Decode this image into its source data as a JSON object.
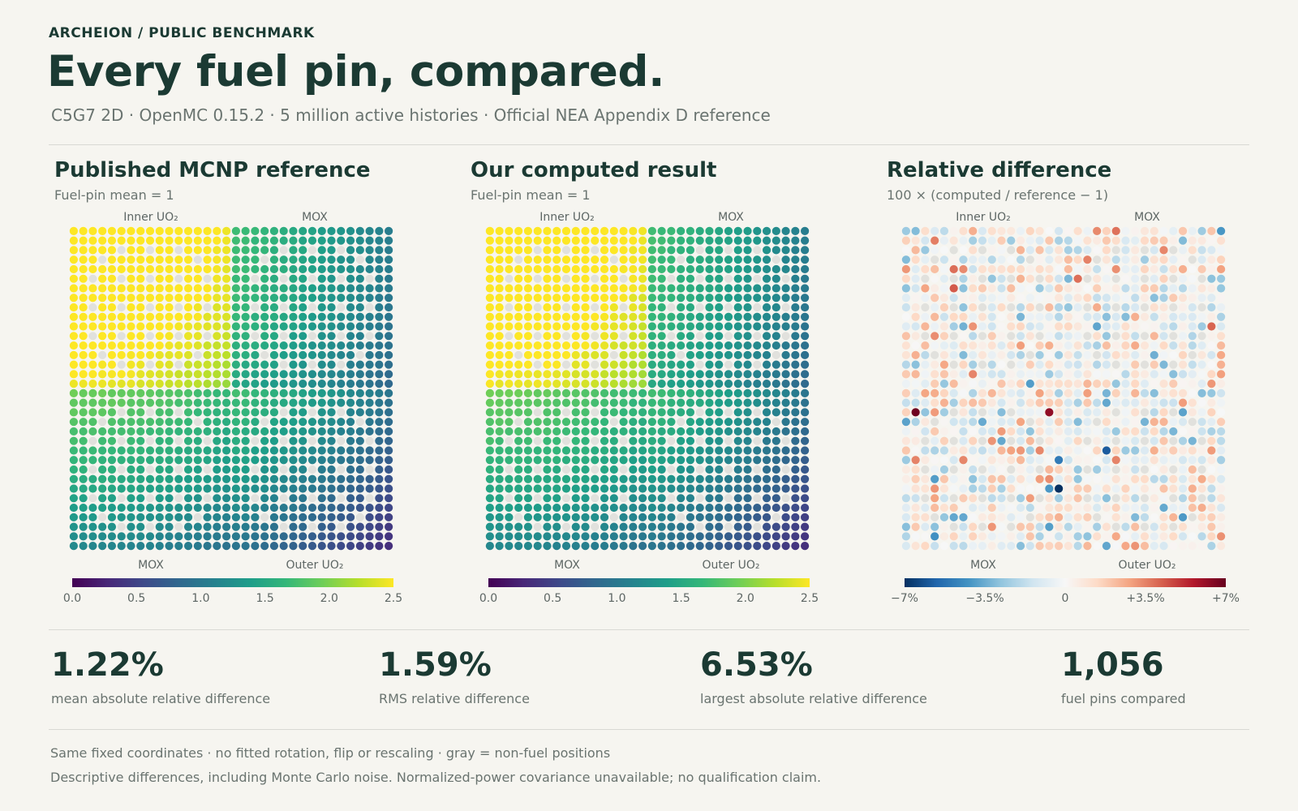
{
  "header": {
    "brand": "ARCHEION  /  PUBLIC BENCHMARK",
    "title": "Every fuel pin, compared.",
    "subtitle": "C5G7 2D · OpenMC 0.15.2 · 5 million active histories · Official NEA Appendix D reference"
  },
  "colors": {
    "background": "#f6f5f0",
    "text_dark": "#1b3a33",
    "text_muted": "#6a7470",
    "nonfuel_gray": "#e1e1dd",
    "viridis": [
      "#440154",
      "#482878",
      "#3e4a89",
      "#31688e",
      "#26828e",
      "#1f9e89",
      "#35b779",
      "#6ece58",
      "#b5de2b",
      "#fde725"
    ],
    "diverging": [
      "#053061",
      "#2166ac",
      "#4393c3",
      "#92c5de",
      "#d1e5f0",
      "#f7f7f7",
      "#fddbc7",
      "#f4a582",
      "#d6604d",
      "#b2182b",
      "#67001f"
    ]
  },
  "panels": [
    {
      "title": "Published MCNP reference",
      "subtitle": "Fuel-pin mean = 1",
      "top_labels": [
        "Inner UO₂",
        "MOX"
      ],
      "bottom_labels": [
        "MOX",
        "Outer UO₂"
      ],
      "colorbar_ticks": [
        "0.0",
        "0.5",
        "1.0",
        "1.5",
        "2.0",
        "2.5"
      ],
      "colormap": "viridis"
    },
    {
      "title": "Our computed result",
      "subtitle": "Fuel-pin mean = 1",
      "top_labels": [
        "Inner UO₂",
        "MOX"
      ],
      "bottom_labels": [
        "MOX",
        "Outer UO₂"
      ],
      "colorbar_ticks": [
        "0.0",
        "0.5",
        "1.0",
        "1.5",
        "2.0",
        "2.5"
      ],
      "colormap": "viridis"
    },
    {
      "title": "Relative difference",
      "subtitle": "100 × (computed / reference − 1)",
      "top_labels": [
        "Inner UO₂",
        "MOX"
      ],
      "bottom_labels": [
        "MOX",
        "Outer UO₂"
      ],
      "colorbar_ticks": [
        "−7%",
        "−3.5%",
        "0",
        "+3.5%",
        "+7%"
      ],
      "colormap": "diverging"
    }
  ],
  "stats": [
    {
      "value": "1.22%",
      "label": "mean absolute relative difference"
    },
    {
      "value": "1.59%",
      "label": "RMS relative difference"
    },
    {
      "value": "6.53%",
      "label": "largest absolute relative difference"
    },
    {
      "value": "1,056",
      "label": "fuel pins compared"
    }
  ],
  "notes": [
    "Same fixed coordinates · no fitted rotation, flip or rescaling · gray = non-fuel positions",
    "Descriptive differences, including Monte Carlo noise. Normalized-power covariance unavailable; no qualification claim."
  ],
  "chart_data": [
    {
      "type": "heatmap",
      "title": "Published MCNP reference",
      "description_note": "34 × 34 fuel-pin power map, normalized to fuel-pin mean = 1",
      "rows": 34,
      "cols": 34,
      "value_range": [
        0.0,
        2.5
      ],
      "quadrants": {
        "top_left": "Inner UO₂",
        "top_right": "MOX",
        "bottom_left": "MOX",
        "bottom_right": "Outer UO₂"
      },
      "peak_value_approx": 2.5,
      "min_value_approx": 0.4
    },
    {
      "type": "heatmap",
      "title": "Our computed result",
      "rows": 34,
      "cols": 34,
      "value_range": [
        0.0,
        2.5
      ],
      "quadrants": {
        "top_left": "Inner UO₂",
        "top_right": "MOX",
        "bottom_left": "MOX",
        "bottom_right": "Outer UO₂"
      },
      "peak_value_approx": 2.5,
      "min_value_approx": 0.4
    },
    {
      "type": "heatmap",
      "title": "Relative difference",
      "rows": 34,
      "cols": 34,
      "value_range": [
        -7,
        7
      ],
      "unit": "%",
      "mean_abs_pct": 1.22,
      "rms_pct": 1.59,
      "max_abs_pct": 6.53,
      "fuel_pins": 1056
    }
  ]
}
